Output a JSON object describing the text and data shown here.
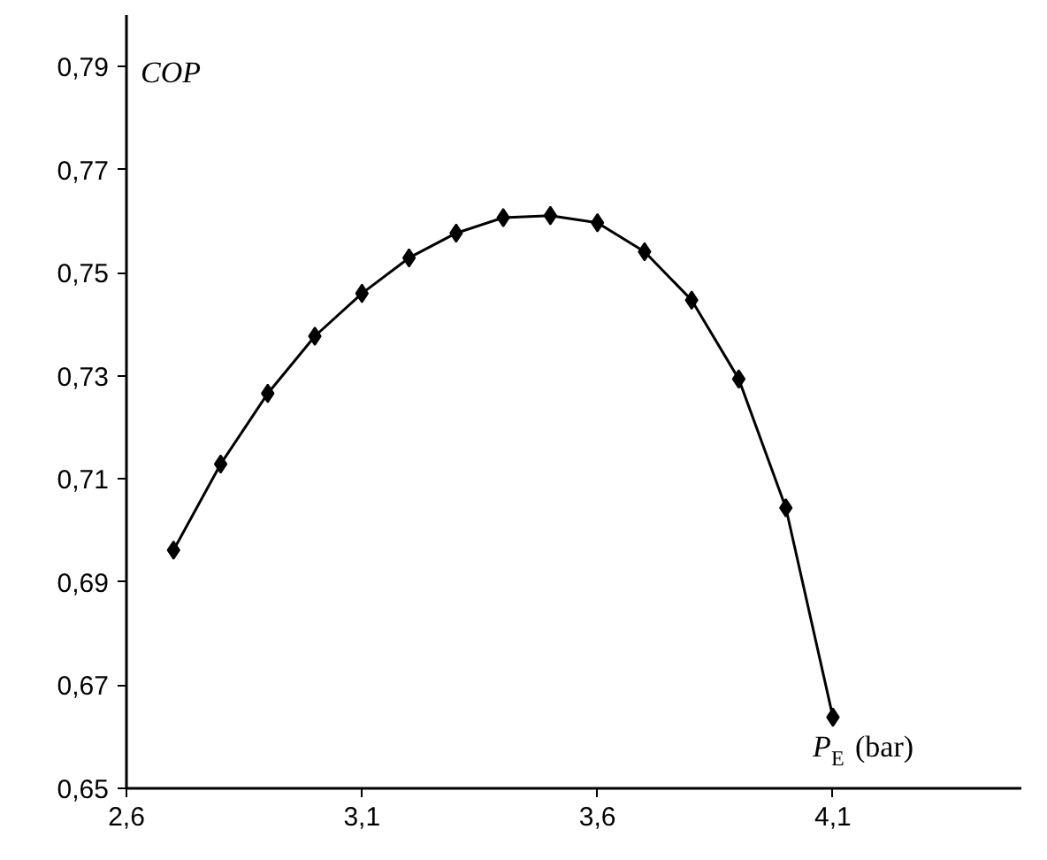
{
  "chart_data": {
    "type": "line",
    "xlabel": "P$_{E}$ (bar)",
    "ylabel": "COP",
    "x": [
      2.7,
      2.8,
      2.9,
      3.0,
      3.1,
      3.2,
      3.3,
      3.4,
      3.5,
      3.6,
      3.7,
      3.8,
      3.9,
      4.0,
      4.1
    ],
    "series": [
      {
        "color": "#000000",
        "values": [
          0.6962,
          0.7129,
          0.7266,
          0.7377,
          0.746,
          0.7529,
          0.7577,
          0.7607,
          0.7611,
          0.7597,
          0.7541,
          0.7447,
          0.7294,
          0.7044,
          0.6638
        ]
      }
    ],
    "xlim": [
      2.6,
      4.5
    ],
    "ylim": [
      0.65,
      0.8
    ],
    "xticks": [
      {
        "value": 2.6,
        "label": "2,6"
      },
      {
        "value": 3.1,
        "label": "3,1"
      },
      {
        "value": 3.6,
        "label": "3,6"
      },
      {
        "value": 4.1,
        "label": "4,1"
      }
    ],
    "yticks": [
      {
        "value": 0.65,
        "label": "0,65"
      },
      {
        "value": 0.67,
        "label": "0,67"
      },
      {
        "value": 0.69,
        "label": "0,69"
      },
      {
        "value": 0.71,
        "label": "0,71"
      },
      {
        "value": 0.73,
        "label": "0,73"
      },
      {
        "value": 0.75,
        "label": "0,75"
      },
      {
        "value": 0.77,
        "label": "0,77"
      },
      {
        "value": 0.79,
        "label": "0,79"
      }
    ],
    "marker": "diamond",
    "line_style": "solid"
  }
}
